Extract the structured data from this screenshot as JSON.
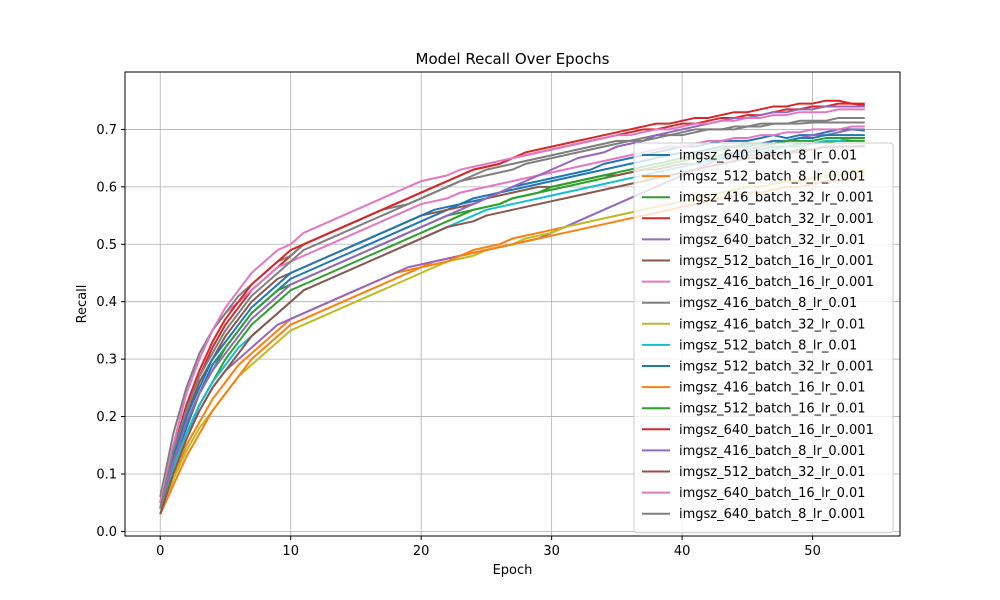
{
  "chart_data": {
    "type": "line",
    "title": "Model Recall Over Epochs",
    "xlabel": "Epoch",
    "ylabel": "Recall",
    "xlim": [
      -2.7,
      56.7
    ],
    "ylim": [
      -0.008,
      0.8
    ],
    "xticks": [
      0,
      10,
      20,
      30,
      40,
      50
    ],
    "yticks": [
      0.0,
      0.1,
      0.2,
      0.3,
      0.4,
      0.5,
      0.6,
      0.7
    ],
    "ytick_labels": [
      "0.0",
      "0.1",
      "0.2",
      "0.3",
      "0.4",
      "0.5",
      "0.6",
      "0.7"
    ],
    "grid": true,
    "legend_position": "right",
    "x_start": 0,
    "x_end": 54,
    "series": [
      {
        "name": "imgsz_640_batch_8_lr_0.01",
        "color": "#1f77b4",
        "values": [
          0.04,
          0.12,
          0.18,
          0.24,
          0.29,
          0.32,
          0.35,
          0.38,
          0.4,
          0.42,
          0.44,
          0.45,
          0.46,
          0.47,
          0.48,
          0.49,
          0.5,
          0.51,
          0.52,
          0.53,
          0.54,
          0.55,
          0.56,
          0.57,
          0.58,
          0.585,
          0.59,
          0.6,
          0.605,
          0.61,
          0.615,
          0.62,
          0.625,
          0.63,
          0.64,
          0.645,
          0.65,
          0.655,
          0.66,
          0.665,
          0.67,
          0.67,
          0.675,
          0.68,
          0.68,
          0.68,
          0.685,
          0.69,
          0.685,
          0.69,
          0.69,
          0.695,
          0.7,
          0.7,
          0.698
        ]
      },
      {
        "name": "imgsz_512_batch_8_lr_0.001",
        "color": "#ff7f0e",
        "values": [
          0.03,
          0.09,
          0.15,
          0.19,
          0.23,
          0.26,
          0.29,
          0.31,
          0.33,
          0.35,
          0.37,
          0.38,
          0.39,
          0.4,
          0.41,
          0.42,
          0.43,
          0.44,
          0.45,
          0.455,
          0.46,
          0.47,
          0.475,
          0.48,
          0.49,
          0.495,
          0.5,
          0.51,
          0.515,
          0.52,
          0.525,
          0.53,
          0.535,
          0.54,
          0.545,
          0.55,
          0.555,
          0.56,
          0.565,
          0.57,
          0.575,
          0.58,
          0.585,
          0.59,
          0.595,
          0.6,
          0.6,
          0.605,
          0.61,
          0.61,
          0.615,
          0.62,
          0.62,
          0.625,
          0.625
        ]
      },
      {
        "name": "imgsz_416_batch_32_lr_0.001",
        "color": "#2ca02c",
        "values": [
          0.04,
          0.11,
          0.17,
          0.22,
          0.26,
          0.3,
          0.33,
          0.36,
          0.38,
          0.4,
          0.42,
          0.43,
          0.44,
          0.45,
          0.46,
          0.47,
          0.48,
          0.49,
          0.5,
          0.51,
          0.52,
          0.53,
          0.54,
          0.55,
          0.56,
          0.565,
          0.57,
          0.58,
          0.585,
          0.59,
          0.595,
          0.6,
          0.605,
          0.61,
          0.615,
          0.62,
          0.625,
          0.63,
          0.635,
          0.64,
          0.645,
          0.65,
          0.65,
          0.655,
          0.66,
          0.66,
          0.665,
          0.67,
          0.67,
          0.675,
          0.675,
          0.678,
          0.68,
          0.68,
          0.68
        ]
      },
      {
        "name": "imgsz_640_batch_32_lr_0.001",
        "color": "#d62728",
        "values": [
          0.05,
          0.14,
          0.21,
          0.27,
          0.32,
          0.36,
          0.39,
          0.42,
          0.44,
          0.46,
          0.48,
          0.5,
          0.51,
          0.52,
          0.53,
          0.54,
          0.55,
          0.56,
          0.57,
          0.58,
          0.59,
          0.6,
          0.61,
          0.62,
          0.63,
          0.635,
          0.64,
          0.65,
          0.655,
          0.66,
          0.665,
          0.67,
          0.675,
          0.68,
          0.685,
          0.69,
          0.695,
          0.7,
          0.7,
          0.705,
          0.71,
          0.71,
          0.715,
          0.72,
          0.72,
          0.725,
          0.725,
          0.73,
          0.735,
          0.735,
          0.74,
          0.74,
          0.745,
          0.745,
          0.745
        ]
      },
      {
        "name": "imgsz_640_batch_32_lr_0.01",
        "color": "#9467bd",
        "values": [
          0.05,
          0.12,
          0.17,
          0.21,
          0.25,
          0.28,
          0.3,
          0.32,
          0.34,
          0.36,
          0.37,
          0.38,
          0.39,
          0.4,
          0.41,
          0.42,
          0.43,
          0.44,
          0.45,
          0.46,
          0.465,
          0.47,
          0.475,
          0.48,
          0.485,
          0.49,
          0.495,
          0.5,
          0.505,
          0.51,
          0.52,
          0.53,
          0.54,
          0.55,
          0.56,
          0.57,
          0.58,
          0.59,
          0.6,
          0.61,
          0.62,
          0.63,
          0.64,
          0.65,
          0.66,
          0.665,
          0.67,
          0.675,
          0.68,
          0.685,
          0.69,
          0.69,
          0.695,
          0.7,
          0.7
        ]
      },
      {
        "name": "imgsz_512_batch_16_lr_0.001",
        "color": "#8c564b",
        "values": [
          0.04,
          0.13,
          0.2,
          0.26,
          0.3,
          0.34,
          0.37,
          0.4,
          0.42,
          0.44,
          0.45,
          0.46,
          0.47,
          0.48,
          0.49,
          0.5,
          0.51,
          0.52,
          0.53,
          0.54,
          0.55,
          0.555,
          0.56,
          0.565,
          0.57,
          0.58,
          0.585,
          0.59,
          0.595,
          0.6,
          0.6,
          0.605,
          0.61,
          0.615,
          0.62,
          0.62,
          0.625,
          0.63,
          0.63,
          0.635,
          0.64,
          0.64,
          0.645,
          0.65,
          0.65,
          0.655,
          0.655,
          0.66,
          0.66,
          0.665,
          0.665,
          0.67,
          0.67,
          0.67,
          0.67
        ]
      },
      {
        "name": "imgsz_416_batch_16_lr_0.001",
        "color": "#e377c2",
        "values": [
          0.05,
          0.15,
          0.24,
          0.3,
          0.35,
          0.38,
          0.4,
          0.42,
          0.44,
          0.46,
          0.47,
          0.48,
          0.49,
          0.5,
          0.51,
          0.52,
          0.53,
          0.54,
          0.55,
          0.56,
          0.57,
          0.575,
          0.58,
          0.59,
          0.595,
          0.6,
          0.605,
          0.61,
          0.615,
          0.62,
          0.625,
          0.63,
          0.635,
          0.64,
          0.645,
          0.65,
          0.655,
          0.66,
          0.665,
          0.67,
          0.67,
          0.675,
          0.68,
          0.68,
          0.685,
          0.685,
          0.69,
          0.69,
          0.695,
          0.695,
          0.7,
          0.7,
          0.7,
          0.705,
          0.705
        ]
      },
      {
        "name": "imgsz_416_batch_8_lr_0.01",
        "color": "#7f7f7f",
        "values": [
          0.06,
          0.17,
          0.25,
          0.31,
          0.35,
          0.38,
          0.41,
          0.43,
          0.45,
          0.47,
          0.48,
          0.5,
          0.51,
          0.52,
          0.53,
          0.54,
          0.55,
          0.56,
          0.565,
          0.57,
          0.58,
          0.59,
          0.6,
          0.61,
          0.62,
          0.63,
          0.635,
          0.64,
          0.645,
          0.65,
          0.655,
          0.66,
          0.665,
          0.67,
          0.675,
          0.68,
          0.68,
          0.685,
          0.69,
          0.69,
          0.695,
          0.7,
          0.7,
          0.7,
          0.705,
          0.705,
          0.71,
          0.71,
          0.71,
          0.715,
          0.715,
          0.715,
          0.72,
          0.72,
          0.72
        ]
      },
      {
        "name": "imgsz_416_batch_32_lr_0.01",
        "color": "#bcbd22",
        "values": [
          0.03,
          0.09,
          0.14,
          0.18,
          0.21,
          0.24,
          0.27,
          0.29,
          0.31,
          0.33,
          0.35,
          0.36,
          0.37,
          0.38,
          0.39,
          0.4,
          0.41,
          0.42,
          0.43,
          0.44,
          0.45,
          0.46,
          0.47,
          0.475,
          0.48,
          0.49,
          0.495,
          0.5,
          0.51,
          0.515,
          0.52,
          0.53,
          0.535,
          0.54,
          0.545,
          0.55,
          0.555,
          0.56,
          0.565,
          0.57,
          0.575,
          0.58,
          0.585,
          0.59,
          0.595,
          0.6,
          0.6,
          0.605,
          0.61,
          0.61,
          0.615,
          0.62,
          0.62,
          0.625,
          0.63
        ]
      },
      {
        "name": "imgsz_512_batch_8_lr_0.01",
        "color": "#17becf",
        "values": [
          0.04,
          0.11,
          0.17,
          0.22,
          0.26,
          0.29,
          0.32,
          0.34,
          0.36,
          0.38,
          0.4,
          0.42,
          0.43,
          0.44,
          0.45,
          0.46,
          0.47,
          0.48,
          0.49,
          0.5,
          0.51,
          0.52,
          0.53,
          0.54,
          0.55,
          0.56,
          0.565,
          0.57,
          0.575,
          0.58,
          0.585,
          0.59,
          0.595,
          0.6,
          0.605,
          0.61,
          0.615,
          0.62,
          0.625,
          0.63,
          0.635,
          0.64,
          0.645,
          0.65,
          0.655,
          0.66,
          0.66,
          0.665,
          0.67,
          0.67,
          0.675,
          0.68,
          0.68,
          0.685,
          0.685
        ]
      },
      {
        "name": "imgsz_512_batch_32_lr_0.001",
        "color": "#1f77b4",
        "values": [
          0.04,
          0.13,
          0.2,
          0.25,
          0.3,
          0.33,
          0.36,
          0.39,
          0.41,
          0.43,
          0.45,
          0.46,
          0.47,
          0.48,
          0.49,
          0.5,
          0.51,
          0.52,
          0.53,
          0.54,
          0.55,
          0.56,
          0.565,
          0.57,
          0.575,
          0.58,
          0.59,
          0.595,
          0.6,
          0.605,
          0.61,
          0.615,
          0.62,
          0.625,
          0.63,
          0.635,
          0.64,
          0.645,
          0.65,
          0.655,
          0.66,
          0.66,
          0.665,
          0.67,
          0.67,
          0.675,
          0.675,
          0.68,
          0.68,
          0.685,
          0.685,
          0.69,
          0.69,
          0.69,
          0.69
        ]
      },
      {
        "name": "imgsz_416_batch_16_lr_0.01",
        "color": "#ff7f0e",
        "values": [
          0.03,
          0.08,
          0.13,
          0.17,
          0.21,
          0.24,
          0.27,
          0.3,
          0.32,
          0.34,
          0.36,
          0.37,
          0.38,
          0.39,
          0.4,
          0.41,
          0.42,
          0.43,
          0.44,
          0.45,
          0.46,
          0.465,
          0.47,
          0.48,
          0.485,
          0.49,
          0.495,
          0.5,
          0.505,
          0.51,
          0.515,
          0.52,
          0.525,
          0.53,
          0.535,
          0.54,
          0.545,
          0.55,
          0.555,
          0.56,
          0.565,
          0.57,
          0.575,
          0.58,
          0.585,
          0.59,
          0.59,
          0.595,
          0.6,
          0.6,
          0.605,
          0.61,
          0.61,
          0.615,
          0.62
        ]
      },
      {
        "name": "imgsz_512_batch_16_lr_0.01",
        "color": "#2ca02c",
        "values": [
          0.04,
          0.12,
          0.19,
          0.24,
          0.28,
          0.32,
          0.35,
          0.38,
          0.4,
          0.42,
          0.43,
          0.44,
          0.45,
          0.46,
          0.47,
          0.48,
          0.49,
          0.5,
          0.51,
          0.52,
          0.53,
          0.54,
          0.55,
          0.555,
          0.56,
          0.565,
          0.57,
          0.58,
          0.585,
          0.59,
          0.6,
          0.605,
          0.61,
          0.615,
          0.62,
          0.625,
          0.63,
          0.635,
          0.64,
          0.645,
          0.65,
          0.655,
          0.66,
          0.665,
          0.67,
          0.67,
          0.675,
          0.675,
          0.68,
          0.68,
          0.68,
          0.685,
          0.685,
          0.685,
          0.685
        ]
      },
      {
        "name": "imgsz_640_batch_16_lr_0.001",
        "color": "#d62728",
        "values": [
          0.05,
          0.14,
          0.22,
          0.28,
          0.33,
          0.37,
          0.4,
          0.43,
          0.45,
          0.47,
          0.49,
          0.5,
          0.51,
          0.52,
          0.53,
          0.54,
          0.55,
          0.56,
          0.57,
          0.58,
          0.59,
          0.6,
          0.61,
          0.62,
          0.63,
          0.635,
          0.64,
          0.65,
          0.66,
          0.665,
          0.67,
          0.675,
          0.68,
          0.685,
          0.69,
          0.695,
          0.7,
          0.705,
          0.71,
          0.71,
          0.715,
          0.72,
          0.72,
          0.725,
          0.73,
          0.73,
          0.735,
          0.74,
          0.74,
          0.745,
          0.745,
          0.75,
          0.75,
          0.745,
          0.742
        ]
      },
      {
        "name": "imgsz_416_batch_8_lr_0.001",
        "color": "#9467bd",
        "values": [
          0.04,
          0.12,
          0.19,
          0.24,
          0.28,
          0.31,
          0.34,
          0.37,
          0.39,
          0.41,
          0.43,
          0.44,
          0.45,
          0.46,
          0.47,
          0.48,
          0.49,
          0.5,
          0.51,
          0.52,
          0.53,
          0.54,
          0.55,
          0.56,
          0.57,
          0.58,
          0.59,
          0.6,
          0.61,
          0.62,
          0.63,
          0.64,
          0.65,
          0.655,
          0.66,
          0.67,
          0.675,
          0.68,
          0.69,
          0.695,
          0.7,
          0.705,
          0.71,
          0.715,
          0.72,
          0.72,
          0.725,
          0.73,
          0.73,
          0.735,
          0.735,
          0.74,
          0.74,
          0.74,
          0.74
        ]
      },
      {
        "name": "imgsz_512_batch_32_lr_0.01",
        "color": "#8c564b",
        "values": [
          0.03,
          0.1,
          0.16,
          0.21,
          0.25,
          0.28,
          0.31,
          0.34,
          0.36,
          0.38,
          0.4,
          0.42,
          0.43,
          0.44,
          0.45,
          0.46,
          0.47,
          0.48,
          0.49,
          0.5,
          0.51,
          0.52,
          0.53,
          0.535,
          0.54,
          0.55,
          0.555,
          0.56,
          0.565,
          0.57,
          0.575,
          0.58,
          0.585,
          0.59,
          0.595,
          0.6,
          0.605,
          0.61,
          0.615,
          0.62,
          0.625,
          0.63,
          0.635,
          0.64,
          0.645,
          0.65,
          0.65,
          0.655,
          0.66,
          0.66,
          0.665,
          0.67,
          0.67,
          0.67,
          0.672
        ]
      },
      {
        "name": "imgsz_640_batch_16_lr_0.01",
        "color": "#e377c2",
        "values": [
          0.05,
          0.15,
          0.24,
          0.3,
          0.35,
          0.39,
          0.42,
          0.45,
          0.47,
          0.49,
          0.5,
          0.52,
          0.53,
          0.54,
          0.55,
          0.56,
          0.57,
          0.58,
          0.59,
          0.6,
          0.61,
          0.615,
          0.62,
          0.63,
          0.635,
          0.64,
          0.645,
          0.65,
          0.655,
          0.66,
          0.665,
          0.67,
          0.675,
          0.68,
          0.685,
          0.69,
          0.69,
          0.695,
          0.7,
          0.7,
          0.705,
          0.71,
          0.71,
          0.715,
          0.715,
          0.72,
          0.72,
          0.725,
          0.725,
          0.73,
          0.73,
          0.73,
          0.735,
          0.735,
          0.735
        ]
      },
      {
        "name": "imgsz_640_batch_8_lr_0.001",
        "color": "#7f7f7f",
        "values": [
          0.04,
          0.14,
          0.21,
          0.27,
          0.31,
          0.35,
          0.38,
          0.41,
          0.43,
          0.45,
          0.47,
          0.49,
          0.5,
          0.51,
          0.52,
          0.53,
          0.54,
          0.55,
          0.56,
          0.57,
          0.58,
          0.59,
          0.6,
          0.61,
          0.615,
          0.62,
          0.625,
          0.63,
          0.64,
          0.645,
          0.65,
          0.655,
          0.66,
          0.665,
          0.67,
          0.675,
          0.68,
          0.68,
          0.685,
          0.69,
          0.69,
          0.695,
          0.7,
          0.7,
          0.7,
          0.705,
          0.705,
          0.71,
          0.71,
          0.71,
          0.712,
          0.712,
          0.712,
          0.712,
          0.712
        ]
      }
    ]
  }
}
